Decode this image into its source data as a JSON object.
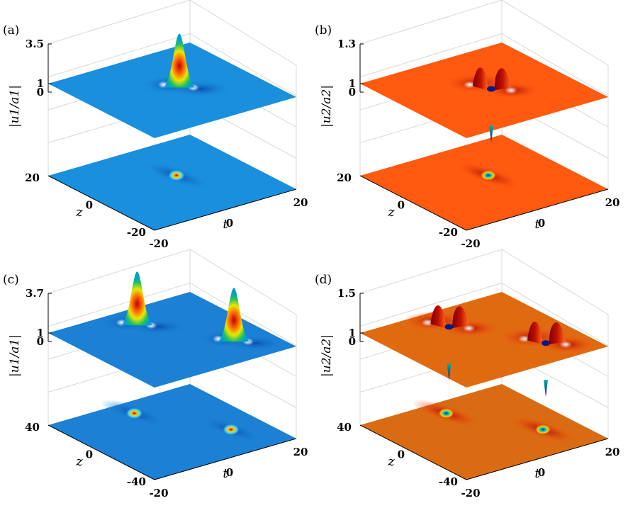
{
  "chart_data": [
    {
      "type": "surface3d",
      "panel_label": "(a)",
      "zlabel": "|u_1/a_1|",
      "zticks": [
        "3.5",
        "1",
        "0"
      ],
      "xlabel": "t",
      "ylabel": "z",
      "xticks": [
        "-20",
        "0",
        "20"
      ],
      "yticks": [
        "20",
        "0",
        "-20"
      ],
      "xlim": [
        -20,
        20
      ],
      "ylim": [
        -20,
        20
      ],
      "zlim": [
        0,
        3.5
      ],
      "background_level": 1,
      "peaks": [
        {
          "t": 0,
          "z": 0,
          "max": 3.5
        }
      ],
      "colormap": "jet",
      "contour_projection": true
    },
    {
      "type": "surface3d",
      "panel_label": "(b)",
      "zlabel": "|u_2/a_2|",
      "zticks": [
        "1.3",
        "1",
        "0"
      ],
      "xlabel": "t",
      "ylabel": "z",
      "xticks": [
        "-20",
        "0",
        "20"
      ],
      "yticks": [
        "20",
        "0",
        "-20"
      ],
      "xlim": [
        -20,
        20
      ],
      "ylim": [
        -20,
        20
      ],
      "zlim": [
        0,
        1.3
      ],
      "background_level": 1,
      "dips": [
        {
          "t": 0,
          "z": 0,
          "min": 0,
          "side_max": 1.3
        }
      ],
      "colormap": "jet",
      "contour_projection": true
    },
    {
      "type": "surface3d",
      "panel_label": "(c)",
      "zlabel": "|u_1/a_1|",
      "zticks": [
        "3.7",
        "1",
        "0"
      ],
      "xlabel": "t",
      "ylabel": "z",
      "xticks": [
        "-20",
        "0",
        "20"
      ],
      "yticks": [
        "40",
        "0",
        "-40"
      ],
      "xlim": [
        -20,
        20
      ],
      "ylim": [
        -40,
        40
      ],
      "zlim": [
        0,
        3.7
      ],
      "background_level": 1,
      "peaks": [
        {
          "t": 0,
          "z": 20,
          "max": 3.7
        },
        {
          "t": 0,
          "z": -20,
          "max": 3.7
        }
      ],
      "colormap": "jet",
      "contour_projection": true
    },
    {
      "type": "surface3d",
      "panel_label": "(d)",
      "zlabel": "|u_2/a_2|",
      "zticks": [
        "1.5",
        "1",
        "0"
      ],
      "xlabel": "t",
      "ylabel": "z",
      "xticks": [
        "-20",
        "0",
        "20"
      ],
      "yticks": [
        "40",
        "0",
        "-40"
      ],
      "xlim": [
        -20,
        20
      ],
      "ylim": [
        -40,
        40
      ],
      "zlim": [
        0,
        1.5
      ],
      "background_level": 1,
      "dips": [
        {
          "t": 0,
          "z": 20,
          "min": 0,
          "side_max": 1.5
        },
        {
          "t": 0,
          "z": -20,
          "min": 0,
          "side_max": 1.5
        }
      ],
      "colormap": "jet",
      "contour_projection": true
    }
  ]
}
